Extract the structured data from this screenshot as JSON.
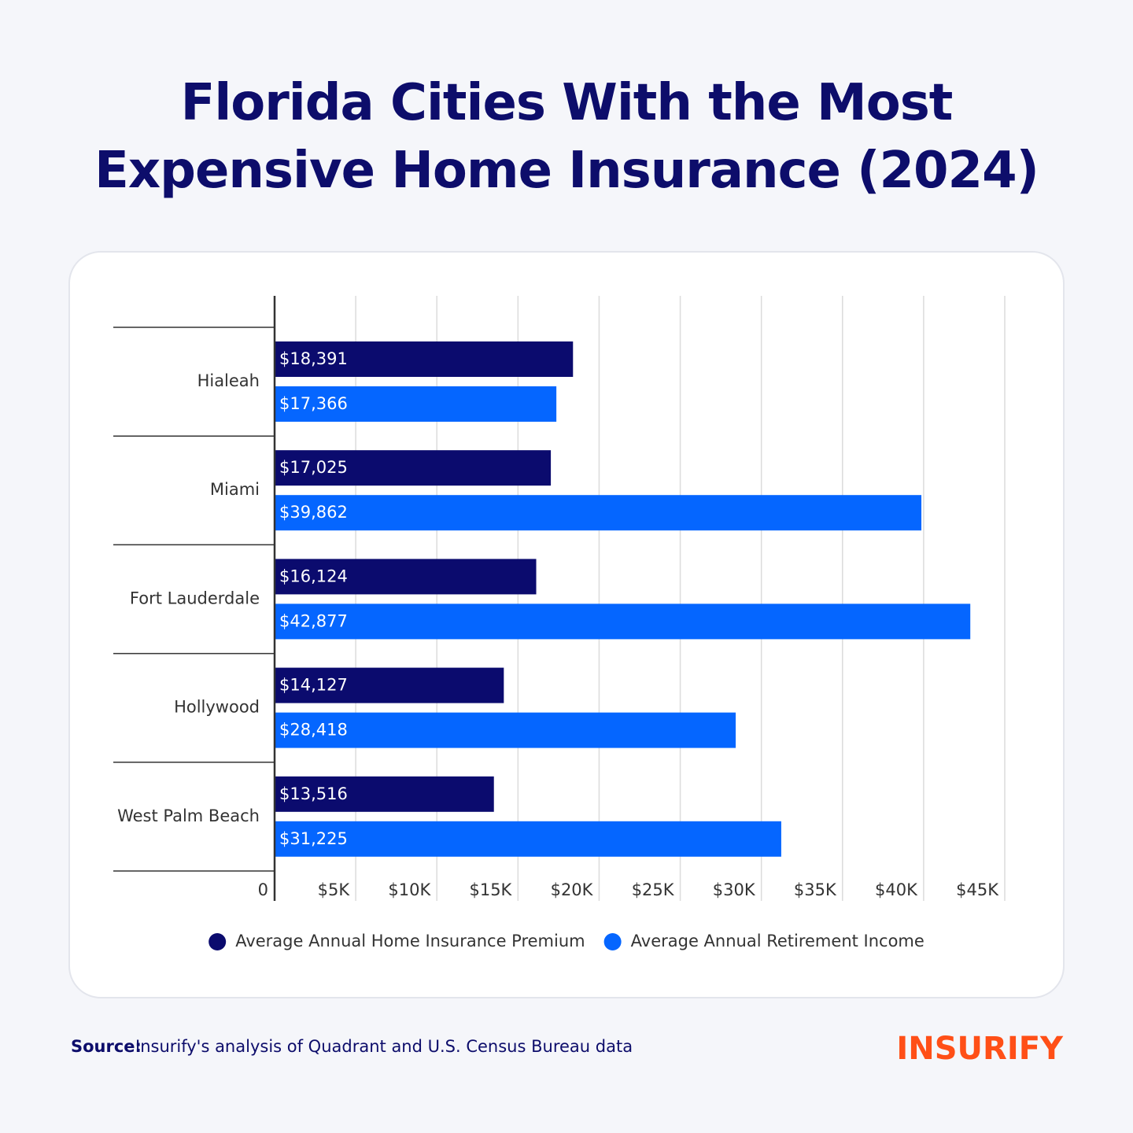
{
  "chart_data": {
    "type": "hbar",
    "title": "Florida Cities With the Most Expensive Home Insurance (2024)",
    "categories": [
      "Hialeah",
      "Miami",
      "Fort Lauderdale",
      "Hollywood",
      "West Palm Beach"
    ],
    "series": [
      {
        "name": "Average Annual Home Insurance Premium",
        "color": "#0b0b6e",
        "values": [
          18391,
          17025,
          16124,
          14127,
          13516
        ],
        "value_labels": [
          "$18,391",
          "$17,025",
          "$16,124",
          "$14,127",
          "$13,516"
        ]
      },
      {
        "name": "Average Annual Retirement Income",
        "color": "#0566ff",
        "values": [
          17366,
          39862,
          42877,
          28418,
          31225
        ],
        "value_labels": [
          "$17,366",
          "$39,862",
          "$42,877",
          "$28,418",
          "$31,225"
        ]
      }
    ],
    "xlim": [
      0,
      45000
    ],
    "xticks": [
      0,
      {
        "value": 5000,
        "label": "$5K"
      },
      {
        "value": 10000,
        "label": "$10K"
      },
      {
        "value": 15000,
        "label": "$15K"
      },
      {
        "value": 20000,
        "label": "$20K"
      },
      {
        "value": 25000,
        "label": "$25K"
      },
      {
        "value": 30000,
        "label": "$30K"
      },
      {
        "value": 35000,
        "label": "$35K"
      },
      {
        "value": 40000,
        "label": "$40K"
      },
      {
        "value": 45000,
        "label": "$45K"
      }
    ],
    "grid": true,
    "legend": "bottom"
  },
  "footer": {
    "source_label": "Source:",
    "source_text": "Insurify's analysis of Quadrant and U.S. Census Bureau data",
    "logo": "INSURIFY"
  }
}
